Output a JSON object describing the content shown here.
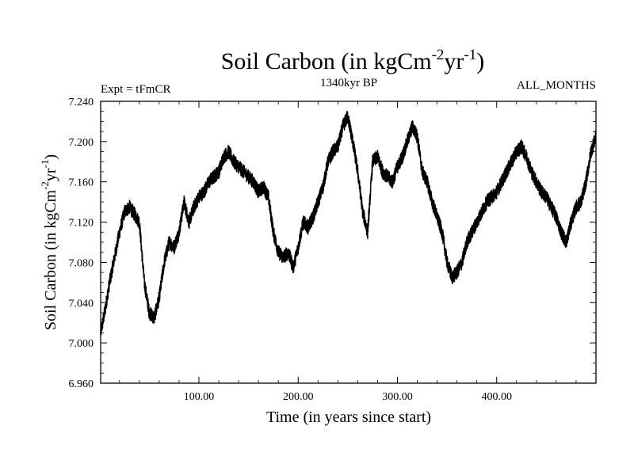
{
  "chart_data": {
    "type": "line",
    "title": "Soil Carbon (in kgCm",
    "title_sup1": "-2",
    "title_mid": "yr",
    "title_sup2": "-1",
    "title_end": ")",
    "left_label": "Expt = tFmCR",
    "center_label": "1340kyr BP",
    "right_label": "ALL_MONTHS",
    "xlabel": "Time (in years since start)",
    "ylabel": "Soil Carbon (in kgCm",
    "ylabel_sup1": "-2",
    "ylabel_mid": "yr",
    "ylabel_sup2": "-1",
    "ylabel_end": ")",
    "xlim": [
      1,
      500
    ],
    "ylim": [
      6.96,
      7.24
    ],
    "x_ticks": [
      100,
      200,
      300,
      400
    ],
    "x_tick_labels": [
      "100.00",
      "200.00",
      "300.00",
      "400.00"
    ],
    "y_ticks": [
      6.96,
      7.0,
      7.04,
      7.08,
      7.12,
      7.16,
      7.2,
      7.24
    ],
    "y_tick_labels": [
      "6.960",
      "7.000",
      "7.040",
      "7.080",
      "7.120",
      "7.160",
      "7.200",
      "7.240"
    ],
    "series": [
      {
        "name": "Soil Carbon",
        "color": "#000000",
        "x": [
          1,
          5,
          10,
          15,
          20,
          25,
          30,
          35,
          40,
          45,
          50,
          55,
          60,
          65,
          70,
          75,
          80,
          85,
          90,
          95,
          100,
          105,
          110,
          115,
          120,
          125,
          130,
          135,
          140,
          145,
          150,
          155,
          160,
          165,
          170,
          175,
          180,
          185,
          190,
          195,
          200,
          205,
          210,
          215,
          220,
          225,
          230,
          235,
          240,
          245,
          250,
          255,
          260,
          265,
          270,
          275,
          280,
          285,
          290,
          295,
          300,
          305,
          310,
          315,
          320,
          325,
          330,
          335,
          340,
          345,
          350,
          355,
          360,
          365,
          370,
          375,
          380,
          385,
          390,
          395,
          400,
          405,
          410,
          415,
          420,
          425,
          430,
          435,
          440,
          445,
          450,
          455,
          460,
          465,
          470,
          475,
          480,
          485,
          490,
          495,
          500
        ],
        "values": [
          7.01,
          7.03,
          7.06,
          7.085,
          7.11,
          7.13,
          7.135,
          7.128,
          7.12,
          7.06,
          7.03,
          7.025,
          7.045,
          7.08,
          7.1,
          7.095,
          7.11,
          7.14,
          7.12,
          7.135,
          7.145,
          7.15,
          7.16,
          7.165,
          7.17,
          7.185,
          7.19,
          7.18,
          7.175,
          7.17,
          7.165,
          7.16,
          7.15,
          7.155,
          7.145,
          7.11,
          7.09,
          7.085,
          7.09,
          7.075,
          7.095,
          7.12,
          7.115,
          7.125,
          7.14,
          7.155,
          7.18,
          7.19,
          7.195,
          7.215,
          7.225,
          7.2,
          7.17,
          7.13,
          7.11,
          7.18,
          7.185,
          7.17,
          7.165,
          7.16,
          7.175,
          7.185,
          7.2,
          7.215,
          7.205,
          7.17,
          7.16,
          7.14,
          7.125,
          7.11,
          7.08,
          7.065,
          7.07,
          7.08,
          7.1,
          7.11,
          7.12,
          7.13,
          7.14,
          7.145,
          7.15,
          7.16,
          7.17,
          7.18,
          7.19,
          7.195,
          7.185,
          7.17,
          7.16,
          7.15,
          7.145,
          7.135,
          7.125,
          7.11,
          7.1,
          7.12,
          7.135,
          7.14,
          7.16,
          7.19,
          7.205
        ]
      }
    ]
  }
}
